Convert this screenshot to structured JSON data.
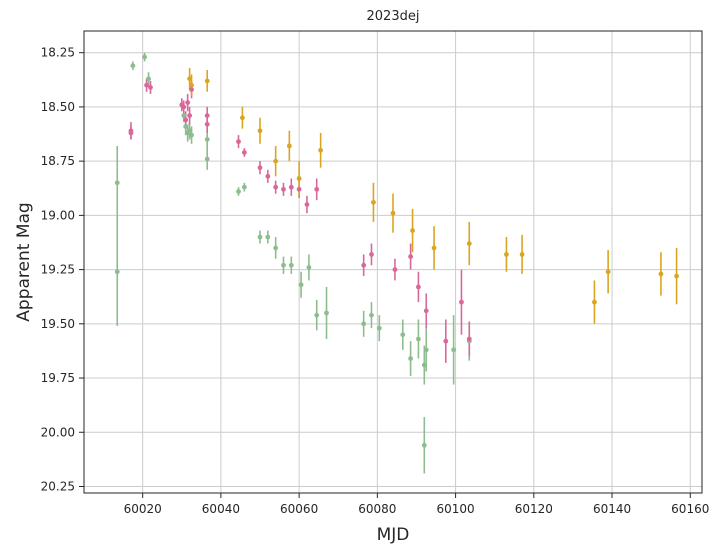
{
  "chart_data": {
    "type": "scatter",
    "title": "2023dej",
    "xlabel": "MJD",
    "ylabel": "Apparent Mag",
    "xlim": [
      60005,
      60163
    ],
    "ylim": [
      20.28,
      18.15
    ],
    "y_inverted": true,
    "grid": true,
    "x_ticks": [
      "60020",
      "60040",
      "60060",
      "60080",
      "60100",
      "60120",
      "60140",
      "60160"
    ],
    "y_ticks": [
      "18.25",
      "18.50",
      "18.75",
      "19.00",
      "19.25",
      "19.50",
      "19.75",
      "20.00",
      "20.25"
    ],
    "series": [
      {
        "color": "#8fbc8f",
        "points": [
          {
            "x": 60013.5,
            "y": 18.85,
            "err": 0.17
          },
          {
            "x": 60013.5,
            "y": 19.26,
            "err": 0.25
          },
          {
            "x": 60017.5,
            "y": 18.31,
            "err": 0.02
          },
          {
            "x": 60020.5,
            "y": 18.27,
            "err": 0.02
          },
          {
            "x": 60021.5,
            "y": 18.37,
            "err": 0.03
          },
          {
            "x": 60030.5,
            "y": 18.54,
            "err": 0.03
          },
          {
            "x": 60031.0,
            "y": 18.59,
            "err": 0.04
          },
          {
            "x": 60031.5,
            "y": 18.62,
            "err": 0.04
          },
          {
            "x": 60032.0,
            "y": 18.61,
            "err": 0.04
          },
          {
            "x": 60032.5,
            "y": 18.63,
            "err": 0.04
          },
          {
            "x": 60036.5,
            "y": 18.65,
            "err": 0.05
          },
          {
            "x": 60036.5,
            "y": 18.74,
            "err": 0.05
          },
          {
            "x": 60044.5,
            "y": 18.89,
            "err": 0.02
          },
          {
            "x": 60046.0,
            "y": 18.87,
            "err": 0.02
          },
          {
            "x": 60050.0,
            "y": 19.1,
            "err": 0.03
          },
          {
            "x": 60052.0,
            "y": 19.1,
            "err": 0.03
          },
          {
            "x": 60054.0,
            "y": 19.15,
            "err": 0.05
          },
          {
            "x": 60056.0,
            "y": 19.23,
            "err": 0.04
          },
          {
            "x": 60058.0,
            "y": 19.23,
            "err": 0.04
          },
          {
            "x": 60060.5,
            "y": 19.32,
            "err": 0.06
          },
          {
            "x": 60062.5,
            "y": 19.24,
            "err": 0.06
          },
          {
            "x": 60064.5,
            "y": 19.46,
            "err": 0.07
          },
          {
            "x": 60067.0,
            "y": 19.45,
            "err": 0.12
          },
          {
            "x": 60076.5,
            "y": 19.5,
            "err": 0.06
          },
          {
            "x": 60078.5,
            "y": 19.46,
            "err": 0.06
          },
          {
            "x": 60080.5,
            "y": 19.52,
            "err": 0.06
          },
          {
            "x": 60086.5,
            "y": 19.55,
            "err": 0.07
          },
          {
            "x": 60088.5,
            "y": 19.66,
            "err": 0.08
          },
          {
            "x": 60090.5,
            "y": 19.57,
            "err": 0.09
          },
          {
            "x": 60092.0,
            "y": 19.69,
            "err": 0.09
          },
          {
            "x": 60092.5,
            "y": 19.62,
            "err": 0.1
          },
          {
            "x": 60092.0,
            "y": 20.06,
            "err": 0.13
          },
          {
            "x": 60099.5,
            "y": 19.62,
            "err": 0.16
          },
          {
            "x": 60103.5,
            "y": 19.58,
            "err": 0.09
          }
        ]
      },
      {
        "color": "#d9689a",
        "points": [
          {
            "x": 60017.0,
            "y": 18.61,
            "err": 0.04
          },
          {
            "x": 60017.0,
            "y": 18.62,
            "err": 0.03
          },
          {
            "x": 60021.0,
            "y": 18.4,
            "err": 0.03
          },
          {
            "x": 60022.0,
            "y": 18.41,
            "err": 0.03
          },
          {
            "x": 60030.0,
            "y": 18.49,
            "err": 0.03
          },
          {
            "x": 60030.5,
            "y": 18.5,
            "err": 0.03
          },
          {
            "x": 60031.0,
            "y": 18.56,
            "err": 0.04
          },
          {
            "x": 60031.5,
            "y": 18.48,
            "err": 0.04
          },
          {
            "x": 60032.0,
            "y": 18.54,
            "err": 0.04
          },
          {
            "x": 60032.5,
            "y": 18.42,
            "err": 0.04
          },
          {
            "x": 60036.5,
            "y": 18.54,
            "err": 0.04
          },
          {
            "x": 60036.5,
            "y": 18.58,
            "err": 0.04
          },
          {
            "x": 60044.5,
            "y": 18.66,
            "err": 0.03
          },
          {
            "x": 60046.0,
            "y": 18.71,
            "err": 0.02
          },
          {
            "x": 60050.0,
            "y": 18.78,
            "err": 0.03
          },
          {
            "x": 60052.0,
            "y": 18.82,
            "err": 0.03
          },
          {
            "x": 60054.0,
            "y": 18.87,
            "err": 0.03
          },
          {
            "x": 60056.0,
            "y": 18.88,
            "err": 0.03
          },
          {
            "x": 60058.0,
            "y": 18.87,
            "err": 0.04
          },
          {
            "x": 60060.0,
            "y": 18.88,
            "err": 0.04
          },
          {
            "x": 60062.0,
            "y": 18.95,
            "err": 0.04
          },
          {
            "x": 60064.5,
            "y": 18.88,
            "err": 0.05
          },
          {
            "x": 60076.5,
            "y": 19.23,
            "err": 0.05
          },
          {
            "x": 60078.5,
            "y": 19.18,
            "err": 0.05
          },
          {
            "x": 60084.5,
            "y": 19.25,
            "err": 0.05
          },
          {
            "x": 60088.5,
            "y": 19.19,
            "err": 0.06
          },
          {
            "x": 60090.5,
            "y": 19.33,
            "err": 0.07
          },
          {
            "x": 60092.5,
            "y": 19.44,
            "err": 0.08
          },
          {
            "x": 60097.5,
            "y": 19.58,
            "err": 0.1
          },
          {
            "x": 60101.5,
            "y": 19.4,
            "err": 0.15
          },
          {
            "x": 60103.5,
            "y": 19.57,
            "err": 0.08
          }
        ]
      },
      {
        "color": "#daa520",
        "points": [
          {
            "x": 60032.0,
            "y": 18.37,
            "err": 0.05
          },
          {
            "x": 60032.5,
            "y": 18.4,
            "err": 0.05
          },
          {
            "x": 60036.5,
            "y": 18.38,
            "err": 0.05
          },
          {
            "x": 60045.5,
            "y": 18.55,
            "err": 0.05
          },
          {
            "x": 60050.0,
            "y": 18.61,
            "err": 0.06
          },
          {
            "x": 60054.0,
            "y": 18.75,
            "err": 0.07
          },
          {
            "x": 60057.5,
            "y": 18.68,
            "err": 0.07
          },
          {
            "x": 60060.0,
            "y": 18.83,
            "err": 0.08
          },
          {
            "x": 60065.5,
            "y": 18.7,
            "err": 0.08
          },
          {
            "x": 60079.0,
            "y": 18.94,
            "err": 0.09
          },
          {
            "x": 60084.0,
            "y": 18.99,
            "err": 0.09
          },
          {
            "x": 60089.0,
            "y": 19.07,
            "err": 0.1
          },
          {
            "x": 60094.5,
            "y": 19.15,
            "err": 0.1
          },
          {
            "x": 60103.5,
            "y": 19.13,
            "err": 0.1
          },
          {
            "x": 60113.0,
            "y": 19.18,
            "err": 0.08
          },
          {
            "x": 60117.0,
            "y": 19.18,
            "err": 0.09
          },
          {
            "x": 60135.5,
            "y": 19.4,
            "err": 0.1
          },
          {
            "x": 60139.0,
            "y": 19.26,
            "err": 0.1
          },
          {
            "x": 60152.5,
            "y": 19.27,
            "err": 0.1
          },
          {
            "x": 60156.5,
            "y": 19.28,
            "err": 0.13
          }
        ]
      }
    ]
  }
}
